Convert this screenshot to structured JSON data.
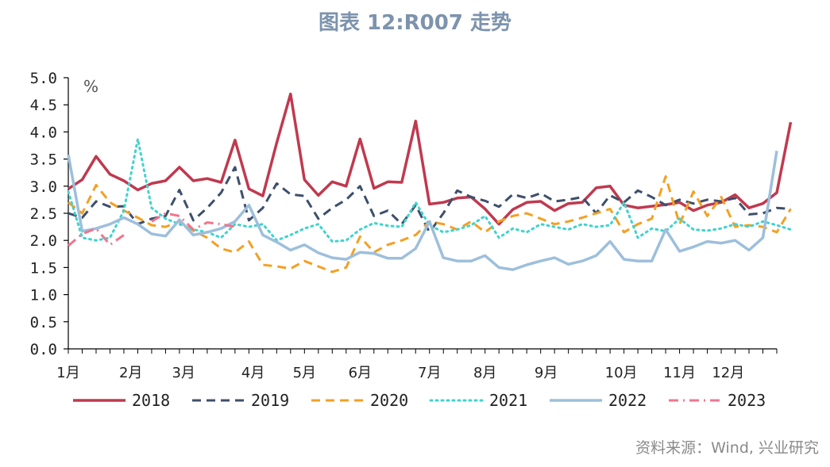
{
  "title": "图表 12:R007 走势",
  "source": "资料来源：Wind, 兴业研究",
  "chart_data": {
    "type": "line",
    "unit_label": "%",
    "ylim": [
      0,
      5
    ],
    "y_ticks": [
      "0.0",
      "0.5",
      "1.0",
      "1.5",
      "2.0",
      "2.5",
      "3.0",
      "3.5",
      "4.0",
      "4.5",
      "5.0"
    ],
    "x_range": [
      1,
      52
    ],
    "x_ticks": [
      {
        "label": "1月",
        "week": 1
      },
      {
        "label": "2月",
        "week": 5.5
      },
      {
        "label": "3月",
        "week": 9.3
      },
      {
        "label": "4月",
        "week": 14.3
      },
      {
        "label": "5月",
        "week": 18
      },
      {
        "label": "6月",
        "week": 22
      },
      {
        "label": "7月",
        "week": 27
      },
      {
        "label": "8月",
        "week": 31
      },
      {
        "label": "9月",
        "week": 35.4
      },
      {
        "label": "10月",
        "week": 40.8
      },
      {
        "label": "11月",
        "week": 45
      },
      {
        "label": "12月",
        "week": 48.5
      }
    ],
    "grid": false,
    "legend_position": "bottom",
    "series": [
      {
        "name": "2018",
        "color": "#c0394e",
        "dash": "solid",
        "width": 3.5,
        "values": [
          2.95,
          3.12,
          3.55,
          3.22,
          3.1,
          2.93,
          3.05,
          3.1,
          3.35,
          3.1,
          3.14,
          3.07,
          3.85,
          2.95,
          2.82,
          3.8,
          4.7,
          3.12,
          2.83,
          3.08,
          3.0,
          3.87,
          2.96,
          3.08,
          3.07,
          4.2,
          2.67,
          2.7,
          2.78,
          2.8,
          2.58,
          2.3,
          2.57,
          2.7,
          2.72,
          2.55,
          2.68,
          2.7,
          2.97,
          3.0,
          2.65,
          2.6,
          2.63,
          2.66,
          2.7,
          2.55,
          2.65,
          2.7,
          2.84,
          2.6,
          2.68,
          2.88,
          4.18
        ]
      },
      {
        "name": "2019",
        "color": "#3d4f6b",
        "dash": "dashed",
        "width": 3,
        "values": [
          2.5,
          2.42,
          2.72,
          2.62,
          2.63,
          2.3,
          2.4,
          2.45,
          2.93,
          2.37,
          2.6,
          2.88,
          3.35,
          2.37,
          2.6,
          3.05,
          2.85,
          2.82,
          2.4,
          2.6,
          2.75,
          3.0,
          2.45,
          2.55,
          2.3,
          2.65,
          2.15,
          2.5,
          2.92,
          2.8,
          2.73,
          2.62,
          2.85,
          2.78,
          2.87,
          2.72,
          2.75,
          2.8,
          2.5,
          2.83,
          2.7,
          2.92,
          2.8,
          2.65,
          2.75,
          2.68,
          2.75,
          2.72,
          2.78,
          2.48,
          2.5,
          2.6,
          2.58
        ]
      },
      {
        "name": "2020",
        "color": "#f3a023",
        "dash": "dashed",
        "width": 3,
        "values": [
          2.7,
          2.5,
          3.02,
          2.7,
          2.55,
          2.42,
          2.28,
          2.25,
          2.35,
          2.18,
          2.05,
          1.85,
          1.78,
          1.98,
          1.55,
          1.52,
          1.48,
          1.62,
          1.52,
          1.42,
          1.5,
          2.07,
          1.78,
          1.92,
          2.0,
          2.1,
          2.35,
          2.3,
          2.2,
          2.35,
          2.15,
          2.35,
          2.45,
          2.5,
          2.4,
          2.3,
          2.35,
          2.42,
          2.5,
          2.58,
          2.15,
          2.3,
          2.4,
          3.18,
          2.3,
          2.9,
          2.45,
          2.8,
          2.25,
          2.28,
          2.25,
          2.15,
          2.58
        ]
      },
      {
        "name": "2021",
        "color": "#3fd3cf",
        "dash": "dotted",
        "width": 3,
        "values": [
          2.9,
          2.05,
          2.0,
          2.05,
          2.55,
          3.87,
          2.6,
          2.4,
          2.3,
          2.2,
          2.15,
          2.05,
          2.3,
          2.25,
          2.3,
          2.0,
          2.1,
          2.22,
          2.3,
          1.98,
          2.0,
          2.2,
          2.32,
          2.27,
          2.25,
          2.7,
          2.28,
          2.15,
          2.2,
          2.28,
          2.45,
          2.05,
          2.22,
          2.15,
          2.3,
          2.25,
          2.2,
          2.3,
          2.25,
          2.28,
          2.7,
          2.05,
          2.22,
          2.17,
          2.4,
          2.2,
          2.18,
          2.22,
          2.3,
          2.25,
          2.35,
          2.28,
          2.2
        ]
      },
      {
        "name": "2022",
        "color": "#9dbfdc",
        "dash": "solid",
        "width": 3.5,
        "values": [
          3.58,
          2.17,
          2.22,
          2.3,
          2.42,
          2.3,
          2.12,
          2.08,
          2.38,
          2.1,
          2.15,
          2.22,
          2.35,
          2.65,
          2.1,
          1.97,
          1.82,
          1.92,
          1.77,
          1.68,
          1.65,
          1.78,
          1.76,
          1.67,
          1.67,
          1.85,
          2.35,
          1.68,
          1.62,
          1.62,
          1.72,
          1.5,
          1.46,
          1.55,
          1.62,
          1.68,
          1.56,
          1.62,
          1.72,
          1.98,
          1.65,
          1.62,
          1.62,
          2.2,
          1.8,
          1.88,
          1.98,
          1.95,
          2.0,
          1.82,
          2.05,
          3.65
        ]
      },
      {
        "name": "2023",
        "color": "#f0758d",
        "dash": "dashdot",
        "width": 3,
        "values": [
          1.9,
          2.12,
          2.22,
          1.92,
          2.1,
          null,
          2.35,
          2.5,
          2.45,
          2.2,
          2.33,
          2.3,
          2.25
        ]
      }
    ]
  }
}
